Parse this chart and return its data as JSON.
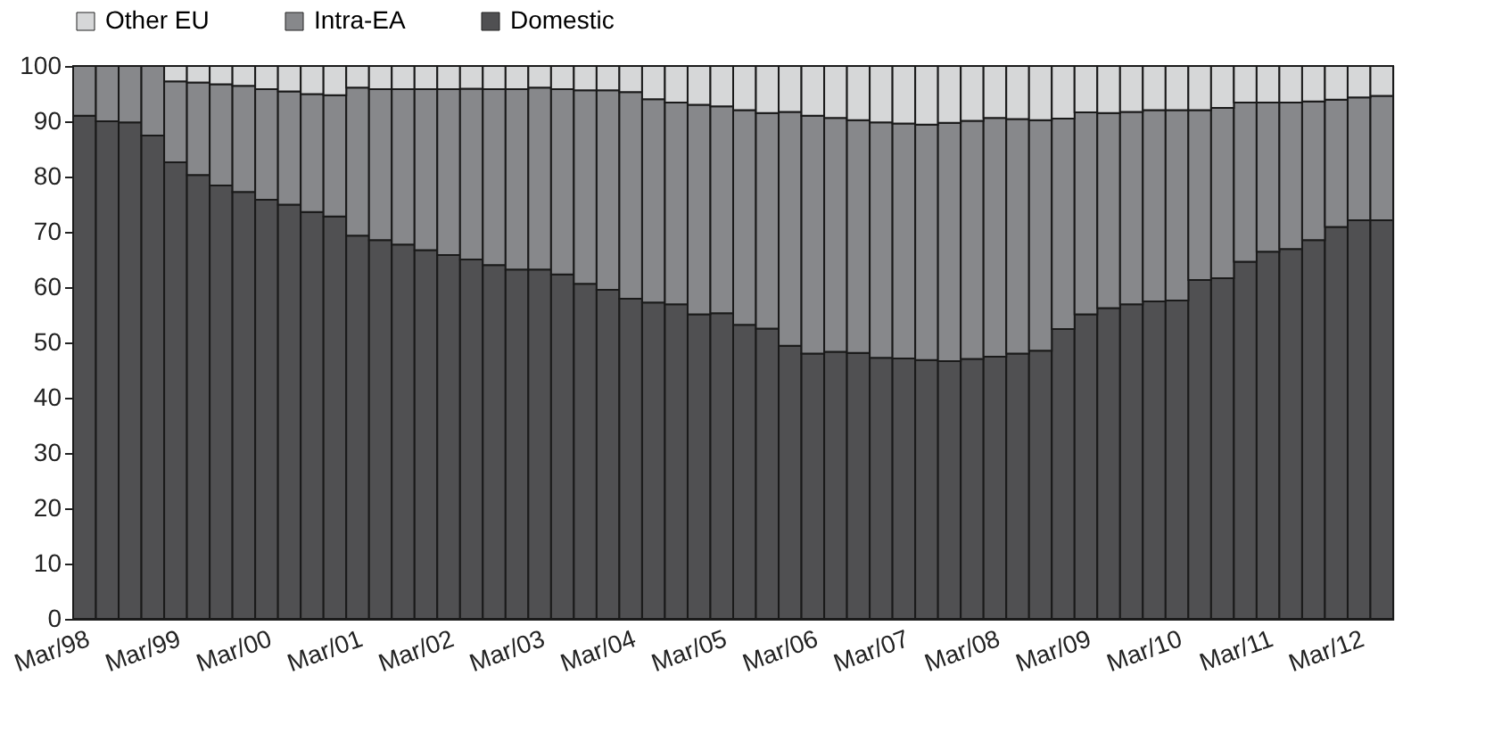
{
  "chart_data": {
    "type": "bar",
    "stacked": true,
    "categories": [
      "Mar/98",
      null,
      null,
      null,
      "Mar/99",
      null,
      null,
      null,
      "Mar/00",
      null,
      null,
      null,
      "Mar/01",
      null,
      null,
      null,
      "Mar/02",
      null,
      null,
      null,
      "Mar/03",
      null,
      null,
      null,
      "Mar/04",
      null,
      null,
      null,
      "Mar/05",
      null,
      null,
      null,
      "Mar/06",
      null,
      null,
      null,
      "Mar/07",
      null,
      null,
      null,
      "Mar/08",
      null,
      null,
      null,
      "Mar/09",
      null,
      null,
      null,
      "Mar/10",
      null,
      null,
      null,
      "Mar/11",
      null,
      null,
      null,
      "Mar/12",
      null
    ],
    "series": [
      {
        "name": "Domestic",
        "color": "#505052",
        "values": [
          91.0,
          90.0,
          89.8,
          87.4,
          82.6,
          80.3,
          78.4,
          77.2,
          75.8,
          74.9,
          73.6,
          72.8,
          69.3,
          68.5,
          67.7,
          66.7,
          65.8,
          65.0,
          64.0,
          63.2,
          63.2,
          62.3,
          60.6,
          59.5,
          57.9,
          57.2,
          56.9,
          55.1,
          55.3,
          53.2,
          52.5,
          49.4,
          48.0,
          48.3,
          48.1,
          47.2,
          47.1,
          46.8,
          46.6,
          47.0,
          47.4,
          48.0,
          48.5,
          52.4,
          55.1,
          56.2,
          56.9,
          57.4,
          57.6,
          61.3,
          61.6,
          64.6,
          66.4,
          66.9,
          68.5,
          70.9,
          72.1,
          72.1
        ]
      },
      {
        "name": "Intra-EA",
        "color": "#87888b",
        "values": [
          9.0,
          10.0,
          10.2,
          12.6,
          14.6,
          16.7,
          18.3,
          19.2,
          20.0,
          20.5,
          21.3,
          21.9,
          26.8,
          27.3,
          28.1,
          29.1,
          30.0,
          30.9,
          31.8,
          32.6,
          32.9,
          33.5,
          35.0,
          36.1,
          37.4,
          36.8,
          36.5,
          37.9,
          37.4,
          38.8,
          39.0,
          42.3,
          43.0,
          42.3,
          42.1,
          42.6,
          42.5,
          42.6,
          43.1,
          43.1,
          43.2,
          42.4,
          41.7,
          38.1,
          36.5,
          35.3,
          34.8,
          34.6,
          34.4,
          30.7,
          30.8,
          28.8,
          27.0,
          26.5,
          25.1,
          23.0,
          22.2,
          22.5
        ]
      },
      {
        "name": "Other EU",
        "color": "#d6d7d8",
        "values": [
          0,
          0,
          0,
          0,
          2.8,
          3.0,
          3.3,
          3.6,
          4.2,
          4.6,
          5.1,
          5.3,
          3.9,
          4.2,
          4.2,
          4.2,
          4.2,
          4.1,
          4.2,
          4.2,
          3.9,
          4.2,
          4.4,
          4.4,
          4.7,
          6.0,
          6.6,
          7.0,
          7.3,
          8.0,
          8.5,
          8.3,
          9.0,
          9.4,
          9.8,
          10.2,
          10.4,
          10.6,
          10.3,
          9.9,
          9.4,
          9.6,
          9.8,
          9.5,
          8.4,
          8.5,
          8.3,
          8.0,
          8.0,
          8.0,
          7.6,
          6.6,
          6.6,
          6.6,
          6.4,
          6.1,
          5.7,
          5.4
        ]
      }
    ],
    "ylim": [
      0,
      100
    ],
    "yticks": [
      0,
      10,
      20,
      30,
      40,
      50,
      60,
      70,
      80,
      90,
      100
    ],
    "legend": "top"
  }
}
